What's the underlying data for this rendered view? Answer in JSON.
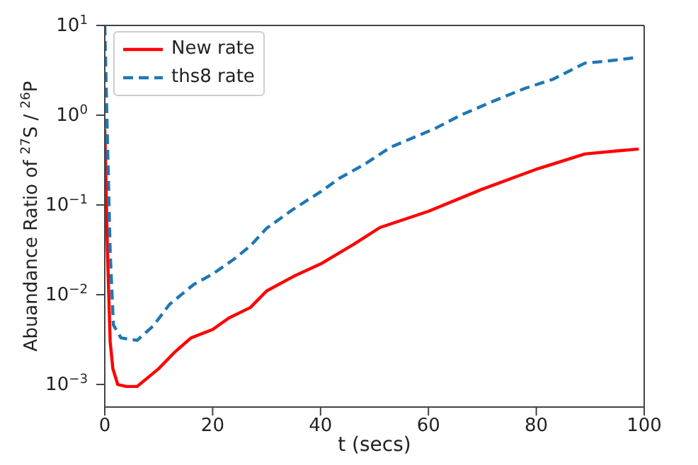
{
  "chart_data": {
    "type": "line",
    "xlabel": "t (secs)",
    "ylabel": "Abuandance Ratio of $^{27}$S / $^{26}$P",
    "log": "y",
    "legend": "top left",
    "grid": false,
    "xlim": [
      0,
      100
    ],
    "xticks": [
      0,
      20,
      40,
      60,
      80,
      100
    ],
    "ylim": [
      0.00056,
      10
    ],
    "yticks": [
      {
        "value": 0.001,
        "label": "10$^{−3}$"
      },
      {
        "value": 0.01,
        "label": "10$^{−2}$"
      },
      {
        "value": 0.1,
        "label": "10$^{−1}$"
      },
      {
        "value": 1,
        "label": "10$^{0}$"
      },
      {
        "value": 10,
        "label": "10$^{1}$"
      }
    ],
    "series": [
      {
        "name": "New rate",
        "color": "#ff0000",
        "line_style": "solid",
        "x": [
          0,
          0.5,
          1,
          1.5,
          2.4,
          4,
          6,
          10,
          13,
          16,
          20,
          23,
          27,
          30,
          35,
          40,
          46,
          51,
          60,
          70,
          80,
          89,
          95,
          99
        ],
        "values": [
          0.7,
          0.03,
          0.003,
          0.0015,
          0.001,
          0.00095,
          0.00095,
          0.0015,
          0.0023,
          0.0033,
          0.0041,
          0.0055,
          0.0072,
          0.011,
          0.016,
          0.022,
          0.036,
          0.056,
          0.085,
          0.15,
          0.25,
          0.37,
          0.4,
          0.42
        ]
      },
      {
        "name": "ths8 rate",
        "color": "#1f77b4",
        "line_style": "dashed",
        "x": [
          0,
          0.5,
          1,
          1.6,
          3,
          6,
          9,
          12,
          16.5,
          20,
          24,
          27,
          30,
          35,
          40,
          43.6,
          48,
          53,
          61,
          66,
          72,
          78,
          83,
          89,
          93,
          98.7
        ],
        "values": [
          10,
          0.5,
          0.03,
          0.0046,
          0.0033,
          0.0031,
          0.0045,
          0.0078,
          0.013,
          0.017,
          0.025,
          0.035,
          0.055,
          0.09,
          0.14,
          0.2,
          0.28,
          0.44,
          0.7,
          1,
          1.43,
          2,
          2.5,
          3.8,
          4,
          4.4
        ]
      }
    ]
  }
}
